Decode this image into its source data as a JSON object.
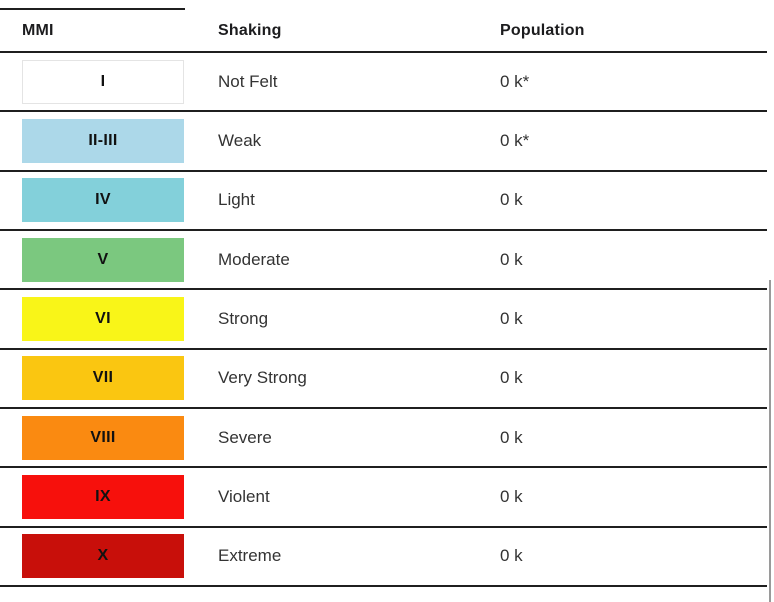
{
  "table": {
    "columns": [
      "MMI",
      "Shaking",
      "Population"
    ],
    "rows": [
      {
        "mmi": "I",
        "shaking": "Not Felt",
        "population": "0 k*",
        "color": "#FFFFFF",
        "border": "#E4E4E4"
      },
      {
        "mmi": "II-III",
        "shaking": "Weak",
        "population": "0 k*",
        "color": "#ACD8E9",
        "border": ""
      },
      {
        "mmi": "IV",
        "shaking": "Light",
        "population": "0 k",
        "color": "#83D0DA",
        "border": ""
      },
      {
        "mmi": "V",
        "shaking": "Moderate",
        "population": "0 k",
        "color": "#7BC87F",
        "border": ""
      },
      {
        "mmi": "VI",
        "shaking": "Strong",
        "population": "0 k",
        "color": "#F9F518",
        "border": ""
      },
      {
        "mmi": "VII",
        "shaking": "Very Strong",
        "population": "0 k",
        "color": "#FAC611",
        "border": ""
      },
      {
        "mmi": "VIII",
        "shaking": "Severe",
        "population": "0 k",
        "color": "#FA8A11",
        "border": ""
      },
      {
        "mmi": "IX",
        "shaking": "Violent",
        "population": "0 k",
        "color": "#F7100C",
        "border": ""
      },
      {
        "mmi": "X",
        "shaking": "Extreme",
        "population": "0 k",
        "color": "#C80F0A",
        "border": ""
      }
    ]
  },
  "colors": {
    "divider": "#1F1F1F",
    "header_text": "#1C1C1E",
    "body_text": "#333333",
    "scrollbar": "#9A9A9A"
  }
}
